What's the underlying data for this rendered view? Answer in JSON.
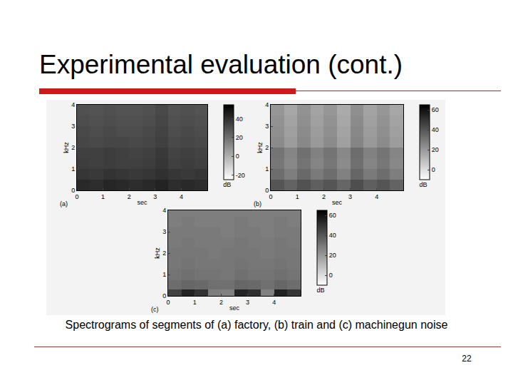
{
  "slide": {
    "title": "Experimental evaluation (cont.)",
    "caption": "Spectrograms of segments of (a) factory, (b) train and (c) machinegun noise",
    "page": "22"
  },
  "chart_data": [
    {
      "type": "heatmap",
      "panel_label": "(a)",
      "xlabel": "sec",
      "ylabel": "kHz",
      "colorbar_title": "dB",
      "x": [
        0.25,
        0.75,
        1.25,
        1.75,
        2.25,
        2.75,
        3.25,
        3.75,
        4.25,
        4.75
      ],
      "y": [
        0.25,
        0.75,
        1.25,
        1.75,
        2.25,
        2.75,
        3.25,
        3.75
      ],
      "z": [
        [
          42,
          41,
          43,
          42,
          41,
          42,
          44,
          41,
          42,
          41
        ],
        [
          38,
          37,
          39,
          38,
          37,
          38,
          40,
          38,
          37,
          38
        ],
        [
          36,
          35,
          36,
          35,
          35,
          36,
          38,
          35,
          36,
          35
        ],
        [
          35,
          35,
          36,
          35,
          34,
          35,
          37,
          34,
          35,
          34
        ],
        [
          33,
          32,
          33,
          33,
          32,
          33,
          35,
          32,
          33,
          32
        ],
        [
          32,
          31,
          32,
          31,
          31,
          32,
          34,
          31,
          32,
          31
        ],
        [
          31,
          30,
          31,
          30,
          30,
          31,
          33,
          30,
          31,
          30
        ],
        [
          30,
          29,
          30,
          29,
          29,
          30,
          32,
          29,
          30,
          29
        ]
      ],
      "xlim": [
        0,
        5
      ],
      "ylim": [
        0,
        4
      ],
      "xticks": [
        0,
        1,
        2,
        3,
        4
      ],
      "yticks": [
        0,
        1,
        2,
        3,
        4
      ],
      "zlim": [
        -25,
        55
      ],
      "zticks": [
        -20,
        0,
        20,
        40
      ]
    },
    {
      "type": "heatmap",
      "panel_label": "(b)",
      "xlabel": "sec",
      "ylabel": "kHz",
      "colorbar_title": "dB",
      "x": [
        0.25,
        0.75,
        1.25,
        1.75,
        2.25,
        2.75,
        3.25,
        3.75,
        4.25,
        4.75
      ],
      "y": [
        0.25,
        0.75,
        1.25,
        1.75,
        2.25,
        2.75,
        3.25,
        3.75
      ],
      "z": [
        [
          40,
          36,
          41,
          37,
          40,
          35,
          42,
          37,
          40,
          36
        ],
        [
          33,
          28,
          34,
          29,
          33,
          27,
          35,
          29,
          33,
          28
        ],
        [
          30,
          25,
          31,
          26,
          30,
          24,
          32,
          26,
          30,
          25
        ],
        [
          31,
          26,
          32,
          27,
          31,
          25,
          33,
          27,
          31,
          26
        ],
        [
          24,
          19,
          25,
          20,
          24,
          18,
          26,
          20,
          24,
          19
        ],
        [
          23,
          18,
          24,
          19,
          23,
          17,
          25,
          19,
          23,
          18
        ],
        [
          22,
          17,
          23,
          18,
          22,
          16,
          24,
          18,
          22,
          17
        ],
        [
          21,
          16,
          22,
          17,
          21,
          15,
          23,
          17,
          21,
          16
        ]
      ],
      "xlim": [
        0,
        5
      ],
      "ylim": [
        0,
        4
      ],
      "xticks": [
        0,
        1,
        2,
        3,
        4
      ],
      "yticks": [
        0,
        1,
        2,
        3,
        4
      ],
      "zlim": [
        -10,
        65
      ],
      "zticks": [
        0,
        20,
        40,
        60
      ]
    },
    {
      "type": "heatmap",
      "panel_label": "(c)",
      "xlabel": "sec",
      "ylabel": "kHz",
      "colorbar_title": "dB",
      "x": [
        0.25,
        0.75,
        1.25,
        1.75,
        2.25,
        2.75,
        3.25,
        3.75,
        4.25,
        4.75
      ],
      "y": [
        0.1,
        0.5,
        1.0,
        1.5,
        2.0,
        2.5,
        3.0,
        3.5,
        3.9
      ],
      "z": [
        [
          46,
          55,
          50,
          28,
          27,
          54,
          51,
          27,
          55,
          49
        ],
        [
          33,
          35,
          34,
          32,
          32,
          35,
          34,
          32,
          35,
          33
        ],
        [
          31,
          32,
          31,
          31,
          30,
          32,
          31,
          31,
          32,
          31
        ],
        [
          30,
          31,
          30,
          30,
          30,
          31,
          30,
          30,
          31,
          30
        ],
        [
          30,
          30,
          30,
          29,
          30,
          30,
          30,
          29,
          30,
          30
        ],
        [
          29,
          30,
          29,
          29,
          29,
          30,
          29,
          29,
          30,
          29
        ],
        [
          29,
          29,
          29,
          29,
          28,
          29,
          29,
          28,
          29,
          29
        ],
        [
          28,
          29,
          28,
          28,
          28,
          29,
          28,
          28,
          29,
          28
        ],
        [
          28,
          28,
          28,
          28,
          28,
          28,
          28,
          28,
          28,
          28
        ]
      ],
      "xlim": [
        0,
        5
      ],
      "ylim": [
        0,
        4
      ],
      "xticks": [
        0,
        1,
        2,
        3,
        4
      ],
      "yticks": [
        0,
        1,
        2,
        3,
        4
      ],
      "zlim": [
        -10,
        65
      ],
      "zticks": [
        0,
        20,
        40,
        60
      ]
    }
  ]
}
